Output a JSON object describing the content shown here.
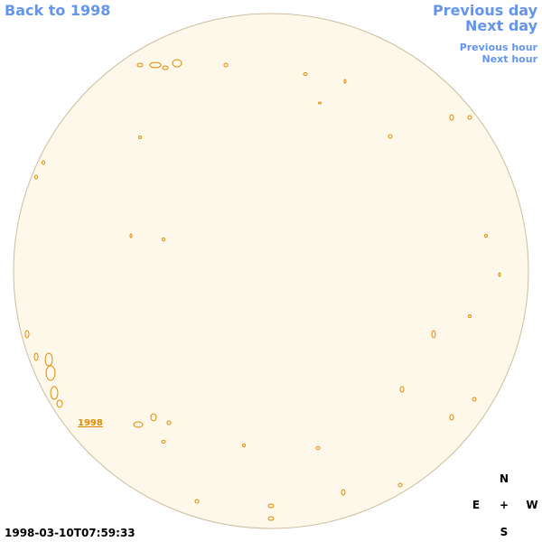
{
  "nav": {
    "back": "Back to 1998",
    "previous_day": "Previous day",
    "next_day": "Next day",
    "previous_hour": "Previous hour",
    "next_hour": "Next hour"
  },
  "region_label": "1998",
  "timestamp": "1998-03-10T07:59:33",
  "compass": {
    "north": "N",
    "east": "E",
    "center": "+",
    "west": "W",
    "south": "S"
  }
}
